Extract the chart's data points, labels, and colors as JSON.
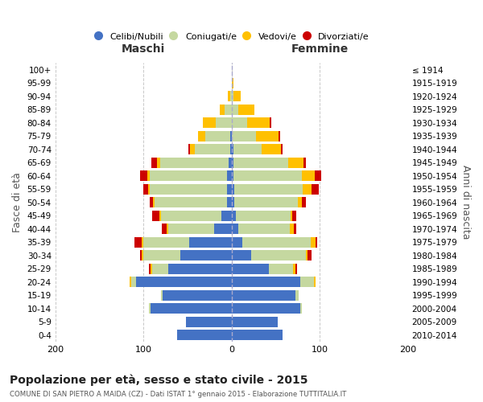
{
  "age_groups": [
    "100+",
    "95-99",
    "90-94",
    "85-89",
    "80-84",
    "75-79",
    "70-74",
    "65-69",
    "60-64",
    "55-59",
    "50-54",
    "45-49",
    "40-44",
    "35-39",
    "30-34",
    "25-29",
    "20-24",
    "15-19",
    "10-14",
    "5-9",
    "0-4"
  ],
  "birth_years": [
    "≤ 1914",
    "1915-1919",
    "1920-1924",
    "1925-1929",
    "1930-1934",
    "1935-1939",
    "1940-1944",
    "1945-1949",
    "1950-1954",
    "1955-1959",
    "1960-1964",
    "1965-1969",
    "1970-1974",
    "1975-1979",
    "1980-1984",
    "1985-1989",
    "1990-1994",
    "1995-1999",
    "2000-2004",
    "2005-2009",
    "2010-2014"
  ],
  "maschi_celibi": [
    0,
    0,
    0,
    0,
    0,
    2,
    2,
    3,
    5,
    5,
    5,
    12,
    20,
    48,
    58,
    72,
    108,
    78,
    92,
    52,
    62
  ],
  "maschi_coniugati": [
    0,
    0,
    2,
    8,
    18,
    28,
    40,
    78,
    88,
    88,
    82,
    68,
    52,
    52,
    42,
    18,
    6,
    2,
    2,
    0,
    0
  ],
  "maschi_vedovi": [
    0,
    0,
    2,
    5,
    15,
    8,
    5,
    4,
    3,
    2,
    2,
    2,
    2,
    2,
    2,
    2,
    2,
    0,
    0,
    0,
    0
  ],
  "maschi_divorziati": [
    0,
    0,
    0,
    0,
    0,
    0,
    2,
    6,
    8,
    5,
    4,
    8,
    5,
    8,
    2,
    2,
    0,
    0,
    0,
    0,
    0
  ],
  "femmine_celibi": [
    0,
    0,
    0,
    0,
    0,
    0,
    2,
    2,
    2,
    3,
    3,
    5,
    8,
    12,
    22,
    42,
    78,
    72,
    78,
    52,
    58
  ],
  "femmine_coniugati": [
    0,
    0,
    2,
    8,
    18,
    28,
    32,
    62,
    78,
    78,
    72,
    62,
    58,
    78,
    62,
    28,
    15,
    4,
    2,
    0,
    0
  ],
  "femmine_vedovi": [
    0,
    2,
    8,
    18,
    25,
    25,
    22,
    18,
    14,
    10,
    5,
    2,
    5,
    5,
    2,
    2,
    2,
    0,
    0,
    0,
    0
  ],
  "femmine_divorziati": [
    0,
    0,
    0,
    0,
    2,
    2,
    2,
    2,
    8,
    8,
    4,
    4,
    2,
    2,
    5,
    2,
    0,
    0,
    0,
    0,
    0
  ],
  "colors": {
    "celibi": "#4472c4",
    "coniugati": "#c5d8a0",
    "vedovi": "#ffc000",
    "divorziati": "#cc0000"
  },
  "title": "Popolazione per età, sesso e stato civile - 2015",
  "subtitle": "COMUNE DI SAN PIETRO A MAIDA (CZ) - Dati ISTAT 1° gennaio 2015 - Elaborazione TUTTITALIA.IT",
  "ylabel_left": "Fasce di età",
  "ylabel_right": "Anni di nascita",
  "xlabel_left": "Maschi",
  "xlabel_right": "Femmine",
  "xlim": [
    -200,
    200
  ],
  "background_color": "#ffffff",
  "grid_color": "#c8c8c8"
}
